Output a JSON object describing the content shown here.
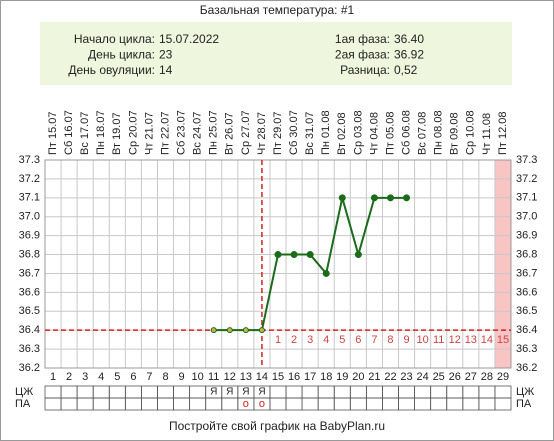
{
  "chart_data": {
    "type": "line",
    "title": "Базальная температура: #1",
    "info_left": [
      {
        "label": "Начало цикла:",
        "value": "15.07.2022"
      },
      {
        "label": "День цикла:",
        "value": 23
      },
      {
        "label": "День овуляции:",
        "value": 14
      }
    ],
    "info_right": [
      {
        "label": "1ая фаза:",
        "value": {
          "value": 36.4,
          "label": "36.40"
        }
      },
      {
        "label": "2ая фаза:",
        "value": "36.92"
      },
      {
        "label": "Разница:",
        "value": "0,52"
      }
    ],
    "dates": [
      "Пт 15.07",
      "Сб 16.07",
      "Вс 17.07",
      "Пн 18.07",
      "Вт 19.07",
      "Ср 20.07",
      "Чт 21.07",
      "Пт 22.07",
      "Сб 23.07",
      "Вс 24.07",
      "Пн 25.07",
      "Вт 26.07",
      "Ср 27.07",
      "Чт 28.07",
      "Пт 29.07",
      "Сб 30.07",
      "Вс 31.07",
      "Пн 01.08",
      "Вт 02.08",
      "Ср 03.08",
      "Чт 04.08",
      "Пт 05.08",
      "Сб 06.08",
      "Вс 07.08",
      "Пн 08.08",
      "Вт 09.08",
      "Ср 10.08",
      "Чт 11.08",
      "Пт 12.08"
    ],
    "categories": [
      1,
      2,
      3,
      4,
      5,
      6,
      7,
      8,
      9,
      10,
      11,
      12,
      13,
      14,
      15,
      16,
      17,
      18,
      19,
      20,
      21,
      22,
      23,
      24,
      25,
      26,
      27,
      28,
      29
    ],
    "series": [
      {
        "color": "#1a6b1a",
        "values": [
          null,
          null,
          null,
          null,
          null,
          null,
          null,
          null,
          null,
          null,
          36.4,
          36.4,
          36.4,
          36.4,
          36.8,
          36.8,
          36.8,
          36.7,
          37.1,
          36.8,
          37.1,
          37.1,
          37.1,
          null,
          null,
          null,
          null,
          null,
          null
        ]
      }
    ],
    "ylim": [
      36.2,
      37.3
    ],
    "yticks": [
      36.2,
      36.3,
      36.4,
      36.5,
      36.6,
      36.7,
      36.8,
      36.9,
      {
        "value": 37,
        "label": "37.0"
      },
      37.1,
      37.2,
      37.3
    ],
    "grid": true,
    "phase2_days": [
      1,
      2,
      3,
      4,
      5,
      6,
      7,
      8,
      9,
      10,
      11,
      12,
      13,
      14,
      15
    ],
    "highlight": {
      "day": 29,
      "color": "#f8c4c4"
    },
    "table": [
      {
        "label": "ЦЖ",
        "cells": [
          null,
          null,
          null,
          null,
          null,
          null,
          null,
          null,
          null,
          null,
          "Я",
          "Я",
          "Я",
          "Я",
          null,
          null,
          null,
          null,
          null,
          null,
          null,
          null,
          null,
          null,
          null,
          null,
          null,
          null,
          null
        ]
      },
      {
        "label": "ПА",
        "cells": [
          null,
          null,
          null,
          null,
          null,
          null,
          null,
          null,
          null,
          null,
          null,
          null,
          "о",
          "о",
          null,
          null,
          null,
          null,
          null,
          null,
          null,
          null,
          null,
          null,
          null,
          null,
          null,
          null,
          null
        ]
      }
    ],
    "footer": "Постройте свой график на BabyPlan.ru"
  }
}
